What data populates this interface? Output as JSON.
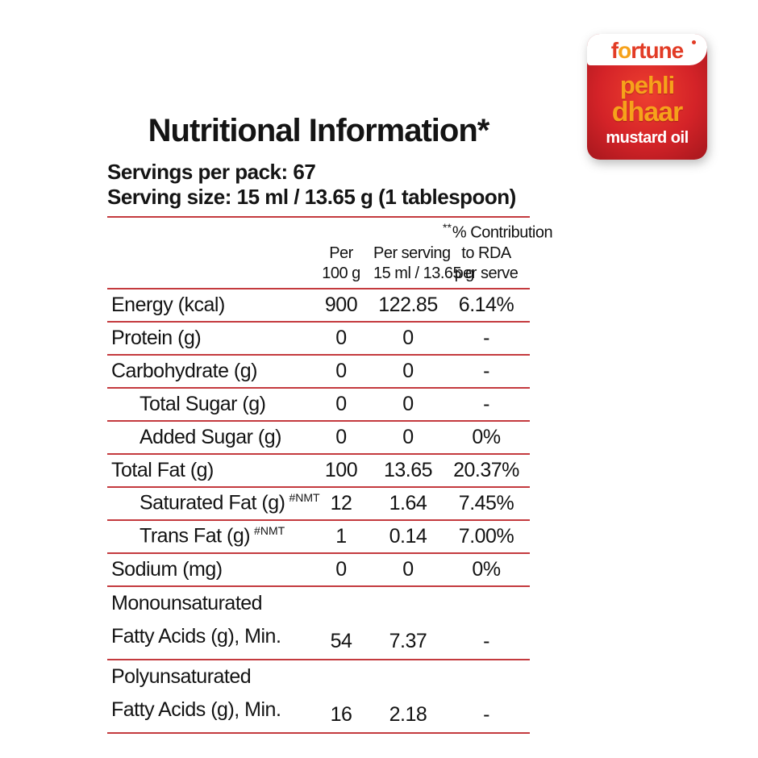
{
  "title": "Nutritional Information*",
  "servings_line": "Servings per pack: 67",
  "serving_size_line": "Serving size: 15 ml / 13.65 g (1 tablespoon)",
  "colors": {
    "rule_red": "#c43a3e",
    "logo_red": "#d42328",
    "brand_orange": "#f6a21b",
    "brand_red": "#e23b25"
  },
  "table": {
    "columns": [
      {
        "id": "per100",
        "sup": "",
        "lines": [
          "Per",
          "100 g"
        ]
      },
      {
        "id": "perServing",
        "sup": "",
        "lines": [
          "Per serving",
          "15 ml / 13.65 g"
        ]
      },
      {
        "id": "rda",
        "sup": "**",
        "lines": [
          "% Contribution",
          "to RDA",
          "per serve"
        ]
      }
    ],
    "rows": [
      {
        "label_lines": [
          "Energy (kcal)"
        ],
        "indent": false,
        "label_sup": "",
        "per100": "900",
        "perServing": "122.85",
        "rda": "6.14%"
      },
      {
        "label_lines": [
          "Protein (g)"
        ],
        "indent": false,
        "label_sup": "",
        "per100": "0",
        "perServing": "0",
        "rda": "-"
      },
      {
        "label_lines": [
          "Carbohydrate (g)"
        ],
        "indent": false,
        "label_sup": "",
        "per100": "0",
        "perServing": "0",
        "rda": "-"
      },
      {
        "label_lines": [
          "Total Sugar (g)"
        ],
        "indent": true,
        "label_sup": "",
        "per100": "0",
        "perServing": "0",
        "rda": "-"
      },
      {
        "label_lines": [
          "Added Sugar (g)"
        ],
        "indent": true,
        "label_sup": "",
        "per100": "0",
        "perServing": "0",
        "rda": "0%"
      },
      {
        "label_lines": [
          "Total Fat (g)"
        ],
        "indent": false,
        "label_sup": "",
        "per100": "100",
        "perServing": "13.65",
        "rda": "20.37%"
      },
      {
        "label_lines": [
          "Saturated Fat (g)"
        ],
        "indent": true,
        "label_sup": "#NMT",
        "per100": "12",
        "perServing": "1.64",
        "rda": "7.45%"
      },
      {
        "label_lines": [
          "Trans Fat (g)"
        ],
        "indent": true,
        "label_sup": "#NMT",
        "per100": "1",
        "perServing": "0.14",
        "rda": "7.00%"
      },
      {
        "label_lines": [
          "Sodium (mg)"
        ],
        "indent": false,
        "label_sup": "",
        "per100": "0",
        "perServing": "0",
        "rda": "0%"
      },
      {
        "label_lines": [
          "Monounsaturated",
          "Fatty Acids (g), Min."
        ],
        "indent": false,
        "label_sup": "",
        "per100": "54",
        "perServing": "7.37",
        "rda": "-"
      },
      {
        "label_lines": [
          "Polyunsaturated",
          "Fatty Acids (g), Min."
        ],
        "indent": false,
        "label_sup": "",
        "per100": "16",
        "perServing": "2.18",
        "rda": "-"
      }
    ]
  },
  "logo": {
    "brand": "fortune",
    "line1": "pehli",
    "line2": "dhaar",
    "line3": "mustard oil"
  }
}
